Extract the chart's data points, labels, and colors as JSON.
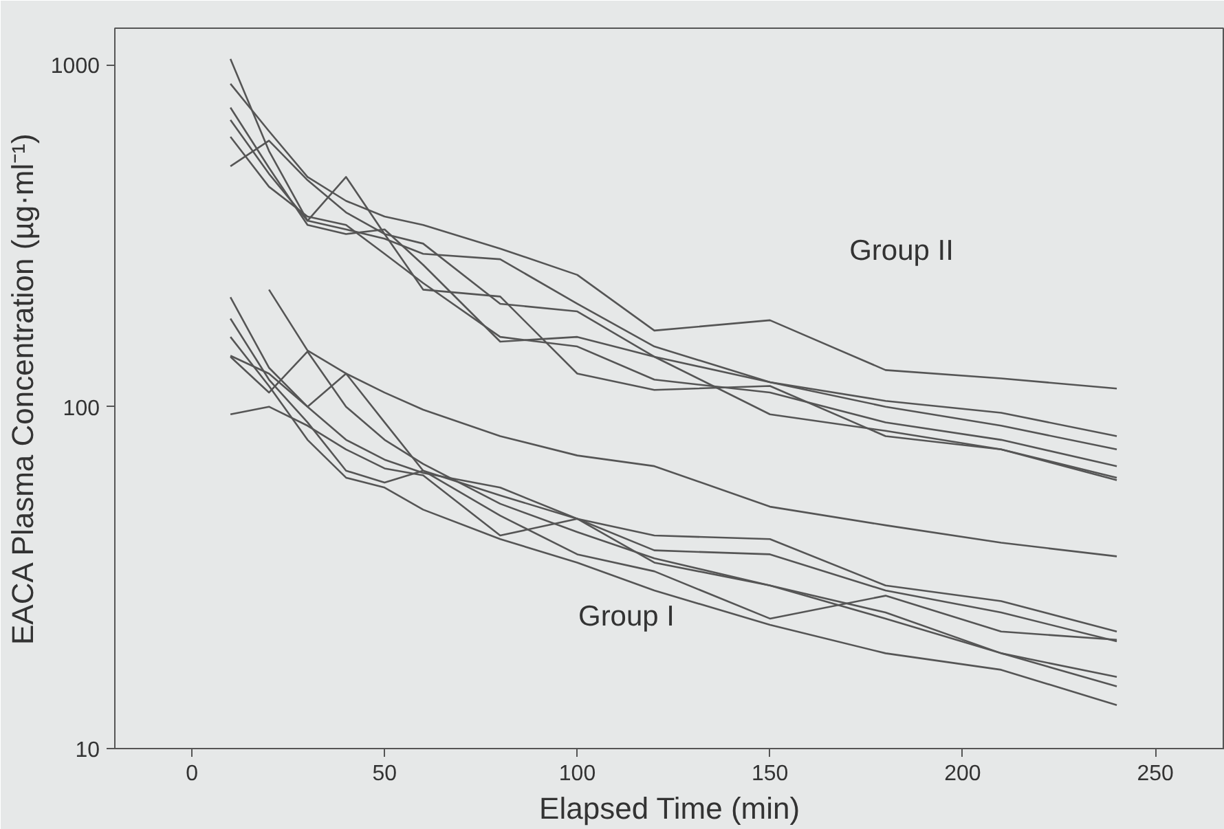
{
  "chart_data": {
    "type": "line",
    "xlabel": "Elapsed Time (min)",
    "ylabel": "EACA Plasma Concentration (µg·ml⁻¹)",
    "x": [
      10,
      20,
      30,
      40,
      50,
      60,
      80,
      100,
      120,
      150,
      180,
      210,
      240
    ],
    "series": [
      {
        "color": "#555555",
        "values": [
          880,
          640,
          470,
          400,
          360,
          340,
          290,
          243,
          167,
          179,
          128,
          121,
          113
        ]
      },
      {
        "color": "#555555",
        "values": [
          1040,
          560,
          350,
          330,
          310,
          280,
          270,
          200,
          150,
          118,
          104,
          96,
          82
        ]
      },
      {
        "color": "#555555",
        "values": [
          690,
          480,
          350,
          470,
          320,
          300,
          200,
          190,
          140,
          118,
          100,
          88,
          75
        ]
      },
      {
        "color": "#555555",
        "values": [
          616,
          440,
          360,
          340,
          280,
          230,
          160,
          150,
          120,
          110,
          90,
          80,
          67
        ]
      },
      {
        "color": "#555555",
        "values": [
          505,
          600,
          460,
          370,
          320,
          220,
          210,
          125,
          112,
          115,
          82,
          75,
          62
        ]
      },
      {
        "color": "#555555",
        "values": [
          750,
          500,
          340,
          320,
          330,
          260,
          155,
          160,
          140,
          95,
          85,
          75,
          61
        ]
      },
      {
        "color": "#555555",
        "values": [
          null,
          220,
          146,
          125,
          110,
          98,
          82,
          72,
          67,
          51,
          45,
          40,
          36.5
        ]
      },
      {
        "color": "#555555",
        "values": [
          209,
          130,
          100,
          125,
          90,
          65,
          55,
          47,
          42,
          41,
          30,
          27,
          22
        ]
      },
      {
        "color": "#555555",
        "values": [
          181,
          120,
          90,
          65,
          60,
          65,
          48,
          37,
          33,
          24,
          28,
          22,
          20.8
        ]
      },
      {
        "color": "#555555",
        "values": [
          141,
          125,
          100,
          80,
          70,
          64,
          58,
          47,
          38,
          37,
          29,
          25,
          20.6
        ]
      },
      {
        "color": "#555555",
        "values": [
          140,
          110,
          145,
          100,
          80,
          68,
          52,
          43,
          36,
          30,
          25,
          19,
          16.2
        ]
      },
      {
        "color": "#555555",
        "values": [
          95,
          100,
          88,
          75,
          66,
          63,
          42,
          47,
          35,
          30,
          24,
          19,
          15.2
        ]
      },
      {
        "color": "#555555",
        "values": [
          160,
          115,
          80,
          62,
          58,
          50,
          41,
          35,
          29,
          23,
          19,
          17,
          13.4
        ]
      }
    ],
    "annotations": [
      "Group II",
      "Group I"
    ],
    "xlim": [
      -20,
      268
    ],
    "ylim": [
      10,
      1280
    ],
    "xticks": [
      0,
      50,
      100,
      150,
      200,
      250
    ],
    "yticks": [
      10,
      100,
      1000
    ],
    "log": "y",
    "grid": false,
    "marker": "none",
    "line_style": "solid"
  }
}
